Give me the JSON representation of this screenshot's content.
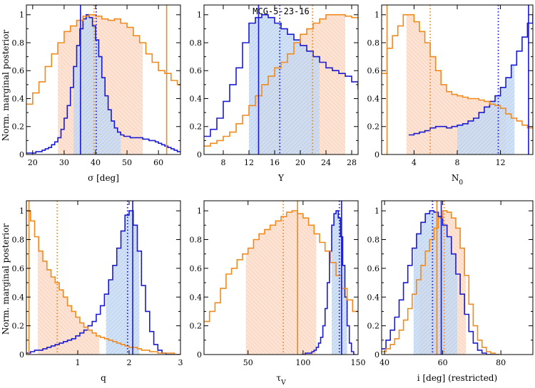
{
  "figure": {
    "ylabel": "Norm. marginal posterior",
    "object": "MCG-5-23-16",
    "colors": {
      "blue": "#1a1ad2",
      "orange": "#f08a1c",
      "blue_fill": "#bcd4f2",
      "orange_fill": "#fbd7c2"
    }
  },
  "chart_data": [
    {
      "type": "line",
      "id": "sigma",
      "xlabel": "σ [deg]",
      "xlim": [
        18,
        67
      ],
      "ylim": [
        0,
        1.07
      ],
      "xticks": [
        20,
        30,
        40,
        50,
        60
      ],
      "yticks": [
        0,
        0.2,
        0.4,
        0.6,
        0.8,
        1
      ],
      "title": "",
      "series": [
        {
          "name": "blue",
          "x0": 18,
          "dx": 1.0,
          "values": [
            0.01,
            0.01,
            0.01,
            0.02,
            0.02,
            0.03,
            0.04,
            0.05,
            0.07,
            0.09,
            0.12,
            0.18,
            0.26,
            0.35,
            0.48,
            0.63,
            0.78,
            0.9,
            0.97,
            1.0,
            0.98,
            0.92,
            0.82,
            0.7,
            0.55,
            0.42,
            0.32,
            0.24,
            0.19,
            0.16,
            0.14,
            0.13,
            0.13,
            0.12,
            0.12,
            0.12,
            0.12,
            0.11,
            0.11,
            0.1,
            0.1,
            0.09,
            0.08,
            0.07,
            0.06,
            0.05,
            0.04,
            0.03,
            0.02
          ]
        },
        {
          "name": "orange",
          "x0": 18,
          "dx": 2.0,
          "values": [
            0.36,
            0.44,
            0.52,
            0.63,
            0.72,
            0.8,
            0.88,
            0.92,
            0.96,
            0.99,
            1.0,
            0.99,
            0.97,
            0.96,
            0.97,
            0.94,
            0.91,
            0.85,
            0.8,
            0.72,
            0.66,
            0.6,
            0.58,
            0.53,
            0.5,
            0.47
          ]
        }
      ],
      "lines": [
        {
          "color": "blue",
          "style": "solid",
          "x": 35.2
        },
        {
          "color": "blue",
          "style": "dotted",
          "x": 40.2
        },
        {
          "color": "orange",
          "style": "solid",
          "x": 62.6
        },
        {
          "color": "orange",
          "style": "dotted",
          "x": 39.5
        }
      ],
      "bands": [
        {
          "color": "orange",
          "from": 28,
          "to": 55
        },
        {
          "color": "blue",
          "from": 33,
          "to": 48
        }
      ]
    },
    {
      "type": "line",
      "id": "Y",
      "xlabel": "Y",
      "xlim": [
        5,
        29
      ],
      "ylim": [
        0,
        1.07
      ],
      "xticks": [
        8,
        12,
        16,
        20,
        24,
        28
      ],
      "yticks": [
        0,
        0.2,
        0.4,
        0.6,
        0.8,
        1
      ],
      "title": "MCG-5-23-16",
      "series": [
        {
          "name": "blue",
          "x0": 5,
          "dx": 1.0,
          "values": [
            0.13,
            0.18,
            0.26,
            0.38,
            0.5,
            0.62,
            0.8,
            0.94,
            0.98,
            1.0,
            0.98,
            0.94,
            0.9,
            0.86,
            0.82,
            0.78,
            0.74,
            0.7,
            0.66,
            0.62,
            0.6,
            0.58,
            0.56,
            0.52,
            0.47
          ]
        },
        {
          "name": "orange",
          "x0": 5,
          "dx": 1.0,
          "values": [
            0.06,
            0.08,
            0.1,
            0.13,
            0.16,
            0.22,
            0.28,
            0.35,
            0.42,
            0.5,
            0.56,
            0.62,
            0.66,
            0.72,
            0.8,
            0.86,
            0.9,
            0.94,
            0.97,
            1.0,
            1.0,
            1.0,
            0.99,
            0.98,
            0.97
          ]
        }
      ],
      "lines": [
        {
          "color": "blue",
          "style": "solid",
          "x": 13.5
        },
        {
          "color": "blue",
          "style": "dotted",
          "x": 16.8
        },
        {
          "color": "orange",
          "style": "dotted",
          "x": 21.9
        }
      ],
      "bands": [
        {
          "color": "orange",
          "from": 13,
          "to": 27
        },
        {
          "color": "blue",
          "from": 12,
          "to": 23
        }
      ]
    },
    {
      "type": "line",
      "id": "N0",
      "xlabel": "N_0",
      "xlim": [
        1,
        15
      ],
      "ylim": [
        0,
        1.07
      ],
      "xticks": [
        4,
        8,
        12
      ],
      "yticks": [
        0,
        0.2,
        0.4,
        0.6,
        0.8,
        1
      ],
      "title": "",
      "series": [
        {
          "name": "blue",
          "x0": 3.5,
          "dx": 0.5,
          "values": [
            0.14,
            0.15,
            0.16,
            0.17,
            0.19,
            0.2,
            0.2,
            0.19,
            0.2,
            0.21,
            0.22,
            0.24,
            0.26,
            0.3,
            0.34,
            0.38,
            0.42,
            0.48,
            0.55,
            0.64,
            0.74,
            0.84,
            0.94,
            1.0
          ]
        },
        {
          "name": "orange",
          "x0": 1,
          "dx": 0.5,
          "values": [
            0.58,
            0.76,
            0.85,
            0.92,
            1.0,
            1.0,
            0.95,
            0.88,
            0.8,
            0.7,
            0.6,
            0.5,
            0.45,
            0.43,
            0.42,
            0.41,
            0.4,
            0.4,
            0.39,
            0.38,
            0.36,
            0.35,
            0.33,
            0.29,
            0.26,
            0.24,
            0.21,
            0.19
          ]
        }
      ],
      "lines": [
        {
          "color": "blue",
          "style": "solid",
          "x": 14.6
        },
        {
          "color": "blue",
          "style": "dotted",
          "x": 11.8
        },
        {
          "color": "orange",
          "style": "solid",
          "x": 1.5
        },
        {
          "color": "orange",
          "style": "dotted",
          "x": 5.5
        }
      ],
      "bands": [
        {
          "color": "orange",
          "from": 3.3,
          "to": 12.5
        },
        {
          "color": "blue",
          "from": 8,
          "to": 13.3
        }
      ]
    },
    {
      "type": "line",
      "id": "q",
      "xlabel": "q",
      "xlim": [
        0,
        3
      ],
      "ylim": [
        0,
        1.07
      ],
      "xticks": [
        1,
        2,
        3
      ],
      "yticks": [
        0,
        0.2,
        0.4,
        0.6,
        0.8,
        1
      ],
      "title": "",
      "series": [
        {
          "name": "blue",
          "x0": 0,
          "dx": 0.08,
          "values": [
            0.01,
            0.02,
            0.03,
            0.03,
            0.04,
            0.05,
            0.06,
            0.07,
            0.08,
            0.09,
            0.1,
            0.11,
            0.13,
            0.15,
            0.17,
            0.2,
            0.23,
            0.28,
            0.34,
            0.42,
            0.52,
            0.62,
            0.74,
            0.86,
            0.97,
            1.0,
            0.9,
            0.72,
            0.48,
            0.3,
            0.16,
            0.07,
            0.03,
            0.01,
            0.0,
            0.0,
            0.0,
            0.0
          ]
        },
        {
          "name": "orange",
          "x0": 0,
          "dx": 0.08,
          "values": [
            1.0,
            0.93,
            0.82,
            0.72,
            0.65,
            0.59,
            0.54,
            0.5,
            0.45,
            0.4,
            0.34,
            0.3,
            0.26,
            0.22,
            0.19,
            0.17,
            0.15,
            0.13,
            0.12,
            0.11,
            0.1,
            0.09,
            0.08,
            0.07,
            0.06,
            0.05,
            0.05,
            0.04,
            0.03,
            0.03,
            0.02,
            0.02,
            0.01,
            0.01,
            0.01,
            0.01,
            0.0,
            0.0
          ]
        }
      ],
      "lines": [
        {
          "color": "blue",
          "style": "solid",
          "x": 2.07
        },
        {
          "color": "blue",
          "style": "dotted",
          "x": 1.97
        },
        {
          "color": "orange",
          "style": "solid",
          "x": 0.05
        },
        {
          "color": "orange",
          "style": "dotted",
          "x": 0.6
        }
      ],
      "bands": [
        {
          "color": "orange",
          "from": 0.22,
          "to": 1.42
        },
        {
          "color": "blue",
          "from": 1.55,
          "to": 2.2
        }
      ]
    },
    {
      "type": "line",
      "id": "tauV",
      "xlabel": "τ_V",
      "xlim": [
        10,
        150
      ],
      "ylim": [
        0,
        1.07
      ],
      "xticks": [
        50,
        100,
        150
      ],
      "yticks": [
        0,
        0.2,
        0.4,
        0.6,
        0.8,
        1
      ],
      "title": "",
      "series": [
        {
          "name": "blue",
          "x0": 98,
          "dx": 2.0,
          "values": [
            0.0,
            0.0,
            0.01,
            0.01,
            0.01,
            0.02,
            0.03,
            0.05,
            0.08,
            0.12,
            0.2,
            0.32,
            0.5,
            0.72,
            0.9,
            0.98,
            1.0,
            0.95,
            0.82,
            0.62,
            0.4,
            0.2,
            0.08,
            0.02,
            0.0
          ]
        },
        {
          "name": "orange",
          "x0": 10,
          "dx": 5.0,
          "values": [
            0.23,
            0.3,
            0.36,
            0.46,
            0.56,
            0.6,
            0.66,
            0.7,
            0.74,
            0.8,
            0.84,
            0.87,
            0.9,
            0.93,
            0.96,
            0.99,
            1.0,
            0.98,
            0.95,
            0.9,
            0.84,
            0.78,
            0.72,
            0.64,
            0.55,
            0.46,
            0.38,
            0.3
          ]
        }
      ],
      "lines": [
        {
          "color": "blue",
          "style": "solid",
          "x": 135
        },
        {
          "color": "blue",
          "style": "dotted",
          "x": 133
        },
        {
          "color": "orange",
          "style": "solid",
          "x": 95
        },
        {
          "color": "orange",
          "style": "dotted",
          "x": 82
        }
      ],
      "bands": [
        {
          "color": "orange",
          "from": 48,
          "to": 112
        },
        {
          "color": "blue",
          "from": 126,
          "to": 140
        }
      ]
    },
    {
      "type": "line",
      "id": "i",
      "xlabel": "i [deg] (restricted)",
      "xlim": [
        39,
        91
      ],
      "ylim": [
        0,
        1.07
      ],
      "xticks": [
        40,
        60,
        80
      ],
      "yticks": [
        0,
        0.2,
        0.4,
        0.6,
        0.8,
        1
      ],
      "title": "",
      "series": [
        {
          "name": "blue",
          "x0": 39,
          "dx": 1.5,
          "values": [
            0.04,
            0.1,
            0.17,
            0.26,
            0.38,
            0.5,
            0.62,
            0.74,
            0.84,
            0.92,
            0.98,
            1.0,
            0.99,
            0.96,
            0.9,
            0.82,
            0.7,
            0.56,
            0.42,
            0.28,
            0.16,
            0.08,
            0.03,
            0.01,
            0.0,
            0.0,
            0.0
          ]
        },
        {
          "name": "orange",
          "x0": 39,
          "dx": 1.5,
          "values": [
            0.02,
            0.04,
            0.07,
            0.11,
            0.17,
            0.24,
            0.32,
            0.42,
            0.52,
            0.62,
            0.72,
            0.8,
            0.88,
            0.95,
            1.0,
            0.99,
            0.95,
            0.88,
            0.74,
            0.55,
            0.35,
            0.2,
            0.1,
            0.05,
            0.02,
            0.01,
            0.0
          ]
        }
      ],
      "lines": [
        {
          "color": "blue",
          "style": "solid",
          "x": 59.5
        },
        {
          "color": "blue",
          "style": "dotted",
          "x": 56.5
        },
        {
          "color": "orange",
          "style": "solid",
          "x": 58
        },
        {
          "color": "orange",
          "style": "dotted",
          "x": 60.5
        }
      ],
      "bands": [
        {
          "color": "orange",
          "from": 52,
          "to": 68
        },
        {
          "color": "blue",
          "from": 50,
          "to": 65
        }
      ]
    }
  ]
}
